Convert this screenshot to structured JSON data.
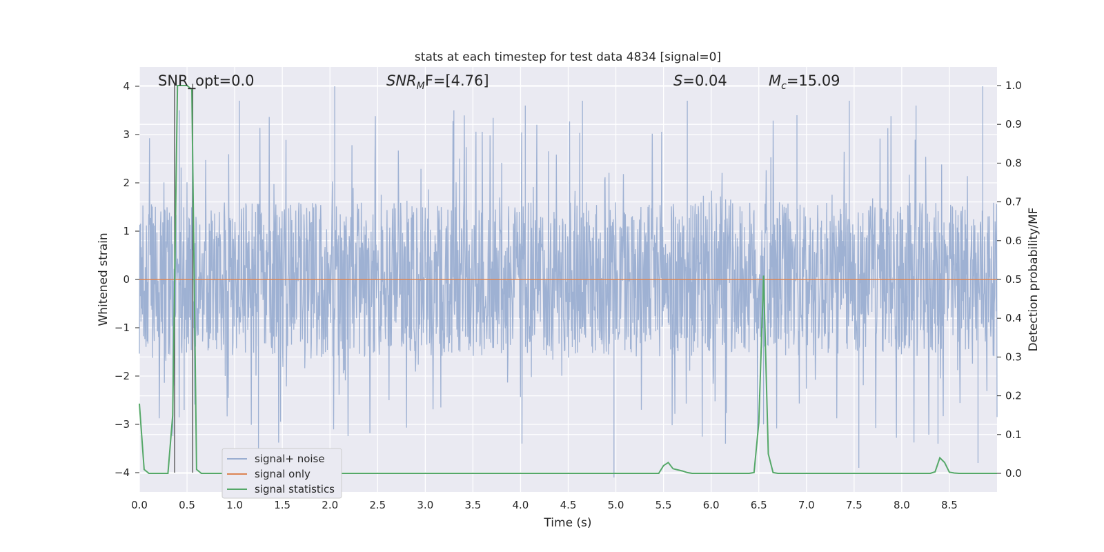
{
  "chart_data": {
    "type": "line",
    "title": "stats at each timestep for test data 4834 [signal=0]",
    "xlabel": "Time (s)",
    "ylabel": "Whitened strain",
    "y2label": "Detection probability/MF",
    "xlim": [
      0.0,
      9.0
    ],
    "ylim": [
      -4.4,
      4.4
    ],
    "y2lim": [
      -0.048,
      1.048
    ],
    "x_ticks": [
      "0.0",
      "0.5",
      "1.0",
      "1.5",
      "2.0",
      "2.5",
      "3.0",
      "3.5",
      "4.0",
      "4.5",
      "5.0",
      "5.5",
      "6.0",
      "6.5",
      "7.0",
      "7.5",
      "8.0",
      "8.5"
    ],
    "y_ticks": [
      "4",
      "3",
      "2",
      "1",
      "0",
      "−1",
      "−2",
      "−3",
      "−4"
    ],
    "y2_ticks": [
      "1.0",
      "0.9",
      "0.8",
      "0.7",
      "0.6",
      "0.5",
      "0.4",
      "0.3",
      "0.2",
      "0.1",
      "0.0"
    ],
    "grid": true,
    "legend_placement": "lower-left",
    "annotations": [
      {
        "text_main": "SNR_opt=0.0"
      },
      {
        "text_main": "SNR",
        "text_sub": "M",
        "text_rest": "F=[4.76]"
      },
      {
        "text_main": "S",
        "text_rest": "=0.04"
      },
      {
        "text_main": "M",
        "text_sub": "c",
        "text_rest": "=15.09"
      }
    ],
    "markers": [
      0.37,
      0.56
    ],
    "series": [
      {
        "name": "signal+ noise",
        "color": "#9aaed1",
        "style": "noise",
        "envelope": {
          "typical": 1.6,
          "peak": 4.0
        },
        "notable_spikes": [
          [
            0.42,
            3.5
          ],
          [
            0.47,
            -2.7
          ],
          [
            1.05,
            3.7
          ],
          [
            1.25,
            -3.9
          ],
          [
            2.05,
            4.0
          ],
          [
            3.3,
            3.5
          ],
          [
            4.05,
            3.6
          ],
          [
            4.65,
            3.7
          ],
          [
            4.98,
            -4.1
          ],
          [
            5.75,
            3.7
          ],
          [
            6.15,
            -3.4
          ],
          [
            6.55,
            -3.0
          ],
          [
            6.9,
            3.4
          ],
          [
            7.45,
            3.7
          ],
          [
            7.55,
            -3.9
          ],
          [
            8.15,
            3.6
          ],
          [
            8.38,
            -3.4
          ],
          [
            8.85,
            4.0
          ],
          [
            8.8,
            -3.8
          ]
        ]
      },
      {
        "name": "signal only",
        "color": "#dd8452",
        "x": [
          0.0,
          9.0
        ],
        "y": [
          0.0,
          0.0
        ]
      },
      {
        "name": "signal statistics",
        "color": "#55a868",
        "axis": "right",
        "x": [
          0.0,
          0.05,
          0.1,
          0.15,
          0.2,
          0.25,
          0.3,
          0.35,
          0.4,
          0.45,
          0.5,
          0.55,
          0.6,
          0.65,
          0.7,
          0.75,
          0.8,
          1.0,
          2.0,
          3.0,
          3.4,
          3.5,
          4.0,
          5.0,
          5.4,
          5.45,
          5.5,
          5.55,
          5.6,
          5.65,
          5.7,
          5.75,
          5.8,
          5.9,
          6.0,
          6.4,
          6.45,
          6.5,
          6.55,
          6.6,
          6.65,
          6.7,
          6.75,
          7.0,
          8.0,
          8.3,
          8.35,
          8.4,
          8.45,
          8.5,
          8.55,
          8.6,
          9.0
        ],
        "y": [
          0.18,
          0.01,
          0.0,
          0.0,
          0.0,
          0.0,
          0.0,
          0.15,
          1.0,
          1.0,
          1.0,
          0.99,
          0.01,
          0.0,
          0.0,
          0.0,
          0.0,
          0.0,
          0.0,
          0.0,
          0.0,
          0.0,
          0.0,
          0.0,
          0.0,
          0.0,
          0.02,
          0.028,
          0.012,
          0.009,
          0.006,
          0.002,
          0.0,
          0.0,
          0.0,
          0.0,
          0.002,
          0.13,
          0.51,
          0.05,
          0.002,
          0.0,
          0.0,
          0.0,
          0.0,
          0.0,
          0.004,
          0.04,
          0.028,
          0.003,
          0.001,
          0.0,
          0.0
        ]
      }
    ]
  }
}
